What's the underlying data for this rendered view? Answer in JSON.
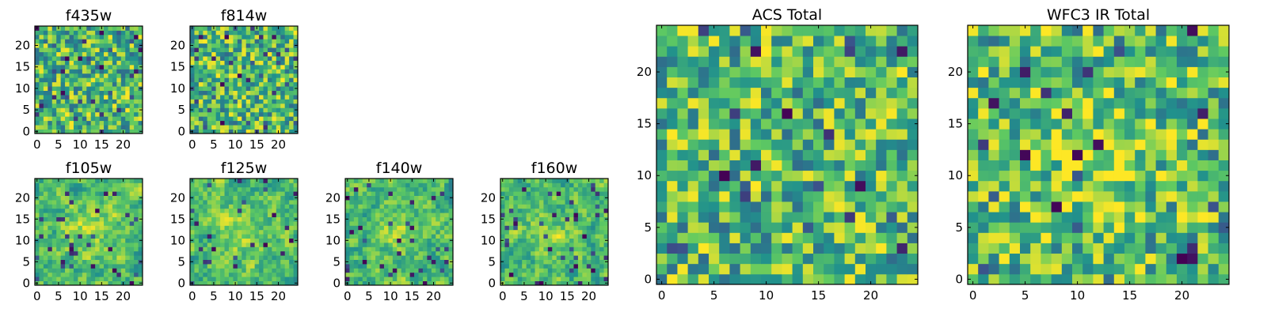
{
  "chart_data": [
    {
      "type": "heatmap",
      "title": "f435w",
      "rows": 25,
      "cols": 25,
      "xticks": [
        0,
        5,
        10,
        15,
        20
      ],
      "yticks": [
        0,
        5,
        10,
        15,
        20
      ],
      "xlim": [
        0,
        24
      ],
      "ylim": [
        0,
        24
      ],
      "seed": 11,
      "smooth": 0,
      "hot_center": 0,
      "dark_fraction": 0.06
    },
    {
      "type": "heatmap",
      "title": "f814w",
      "rows": 25,
      "cols": 25,
      "xticks": [
        0,
        5,
        10,
        15,
        20
      ],
      "yticks": [
        0,
        5,
        10,
        15,
        20
      ],
      "xlim": [
        0,
        24
      ],
      "ylim": [
        0,
        24
      ],
      "seed": 23,
      "smooth": 0,
      "hot_center": 0,
      "dark_fraction": 0.05
    },
    {
      "type": "heatmap",
      "title": "f105w",
      "rows": 25,
      "cols": 25,
      "xticks": [
        0,
        5,
        10,
        15,
        20
      ],
      "yticks": [
        0,
        5,
        10,
        15,
        20
      ],
      "xlim": [
        0,
        24
      ],
      "ylim": [
        0,
        24
      ],
      "seed": 37,
      "smooth": 1,
      "hot_center": 0.15,
      "dark_fraction": 0.05
    },
    {
      "type": "heatmap",
      "title": "f125w",
      "rows": 25,
      "cols": 25,
      "xticks": [
        0,
        5,
        10,
        15,
        20
      ],
      "yticks": [
        0,
        5,
        10,
        15,
        20
      ],
      "xlim": [
        0,
        24
      ],
      "ylim": [
        0,
        24
      ],
      "seed": 41,
      "smooth": 1,
      "hot_center": 0.15,
      "dark_fraction": 0.05
    },
    {
      "type": "heatmap",
      "title": "f140w",
      "rows": 25,
      "cols": 25,
      "xticks": [
        0,
        5,
        10,
        15,
        20
      ],
      "yticks": [
        0,
        5,
        10,
        15,
        20
      ],
      "xlim": [
        0,
        24
      ],
      "ylim": [
        0,
        24
      ],
      "seed": 53,
      "smooth": 1,
      "hot_center": 0.12,
      "dark_fraction": 0.04
    },
    {
      "type": "heatmap",
      "title": "f160w",
      "rows": 25,
      "cols": 25,
      "xticks": [
        0,
        5,
        10,
        15,
        20
      ],
      "yticks": [
        0,
        5,
        10,
        15,
        20
      ],
      "xlim": [
        0,
        24
      ],
      "ylim": [
        0,
        24
      ],
      "seed": 67,
      "smooth": 1,
      "hot_center": 0.1,
      "dark_fraction": 0.06
    },
    {
      "type": "heatmap",
      "title": "ACS Total",
      "rows": 25,
      "cols": 25,
      "xticks": [
        0,
        5,
        10,
        15,
        20
      ],
      "yticks": [
        0,
        5,
        10,
        15,
        20
      ],
      "xlim": [
        0,
        24
      ],
      "ylim": [
        0,
        24
      ],
      "seed": 79,
      "smooth": 0,
      "hot_center": 0,
      "dark_fraction": 0.03
    },
    {
      "type": "heatmap",
      "title": "WFC3 IR Total",
      "rows": 25,
      "cols": 25,
      "xticks": [
        0,
        5,
        10,
        15,
        20
      ],
      "yticks": [
        0,
        5,
        10,
        15,
        20
      ],
      "xlim": [
        0,
        24
      ],
      "ylim": [
        0,
        24
      ],
      "seed": 97,
      "smooth": 0,
      "hot_center": 0.2,
      "dark_fraction": 0.04
    }
  ],
  "colormap": [
    "#440154",
    "#3b528b",
    "#21918c",
    "#5ec962",
    "#fde725"
  ]
}
